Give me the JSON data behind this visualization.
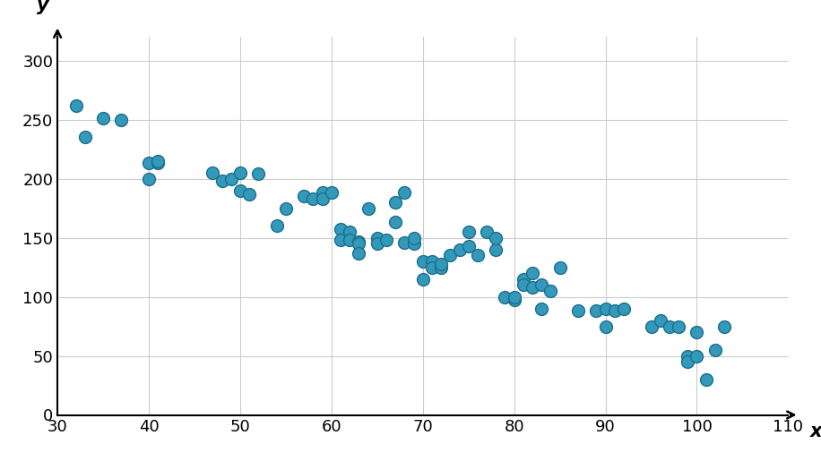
{
  "x": [
    32,
    33,
    35,
    37,
    40,
    40,
    41,
    41,
    47,
    48,
    49,
    50,
    50,
    51,
    52,
    54,
    55,
    57,
    58,
    59,
    59,
    60,
    61,
    61,
    62,
    62,
    63,
    63,
    63,
    64,
    65,
    65,
    66,
    67,
    67,
    68,
    68,
    69,
    69,
    70,
    70,
    71,
    71,
    72,
    72,
    73,
    74,
    75,
    75,
    76,
    77,
    78,
    78,
    79,
    80,
    80,
    81,
    81,
    82,
    82,
    83,
    83,
    84,
    85,
    87,
    89,
    90,
    90,
    91,
    92,
    95,
    96,
    97,
    98,
    99,
    99,
    100,
    100,
    101,
    102,
    103
  ],
  "y": [
    262,
    235,
    251,
    250,
    200,
    213,
    213,
    215,
    205,
    198,
    200,
    205,
    190,
    187,
    204,
    160,
    175,
    185,
    183,
    188,
    183,
    188,
    157,
    148,
    155,
    148,
    147,
    145,
    137,
    175,
    150,
    145,
    148,
    180,
    163,
    188,
    146,
    145,
    150,
    115,
    130,
    130,
    125,
    125,
    128,
    135,
    140,
    155,
    143,
    135,
    155,
    140,
    150,
    100,
    97,
    100,
    115,
    110,
    108,
    120,
    110,
    90,
    105,
    125,
    88,
    88,
    90,
    75,
    88,
    90,
    75,
    80,
    75,
    75,
    50,
    45,
    70,
    50,
    30,
    55,
    75
  ],
  "point_color": "#3399bb",
  "point_edge_color": "#1d6e8a",
  "point_size": 100,
  "xlim": [
    30,
    110
  ],
  "ylim": [
    0,
    320
  ],
  "xticks": [
    30,
    40,
    50,
    60,
    70,
    80,
    90,
    100,
    110
  ],
  "yticks": [
    0,
    50,
    100,
    150,
    200,
    250,
    300
  ],
  "xlabel": "x",
  "ylabel": "y",
  "grid_color": "#cccccc",
  "background_color": "#ffffff",
  "tick_fontsize": 13,
  "label_fontsize": 15
}
